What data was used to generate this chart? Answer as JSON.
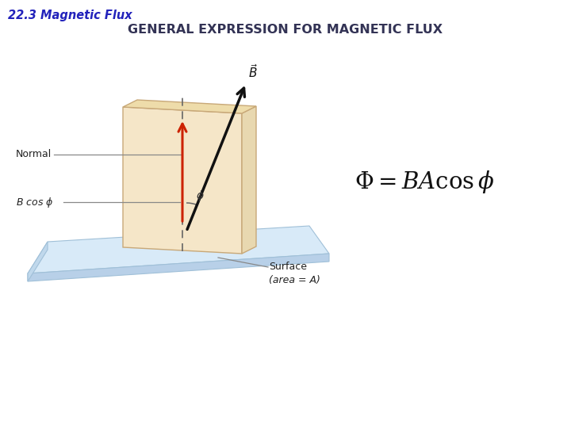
{
  "title_section": "22.3 Magnetic Flux",
  "title_section_color": "#2222bb",
  "subtitle": "GENERAL EXPRESSION FOR MAGNETIC FLUX",
  "subtitle_color": "#333355",
  "background_color": "#ffffff",
  "panel_facecolor": "#f5e6c8",
  "panel_edgecolor": "#c8a878",
  "panel_right_facecolor": "#e8d8b0",
  "surface_top_facecolor": "#d8eaf8",
  "surface_top_edgecolor": "#a0c0d8",
  "surface_front_facecolor": "#b8d0e8",
  "surface_left_facecolor": "#c0d8ec",
  "normal_arrow_color": "#cc2200",
  "B_arrow_color": "#111111",
  "dashed_color": "#666666",
  "label_color": "#222222",
  "line_color": "#888888",
  "label_normal": "Normal",
  "label_bcos": "B cos ϕ",
  "label_surface": "Surface",
  "label_area": "(area = A)",
  "label_phi": "ϕ",
  "label_B_vec": "B"
}
